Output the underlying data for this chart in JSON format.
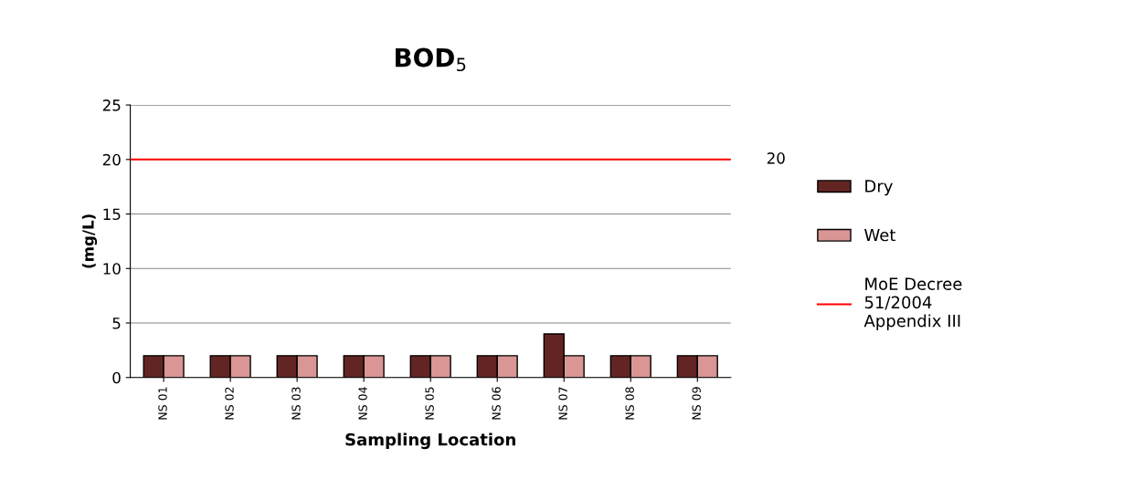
{
  "chart_data": {
    "type": "bar",
    "title": "BOD$_{5}$",
    "xlabel": "Sampling Location",
    "ylabel": "(mg/L)",
    "categories": [
      "NS 01",
      "NS 02",
      "NS 03",
      "NS 04",
      "NS 05",
      "NS 06",
      "NS 07",
      "NS 08",
      "NS 09"
    ],
    "series": [
      {
        "name": "Dry",
        "color": "#632523",
        "values": [
          2,
          2,
          2,
          2,
          2,
          2,
          4,
          2,
          2
        ]
      },
      {
        "name": "Wet",
        "color": "#d99694",
        "values": [
          2,
          2,
          2,
          2,
          2,
          2,
          2,
          2,
          2
        ]
      }
    ],
    "ylim": [
      0,
      25
    ],
    "yticks": [
      0,
      5,
      10,
      15,
      20,
      25
    ],
    "grid": "y",
    "legend": "right",
    "ref_lines": [
      {
        "axis": "y",
        "value": 20,
        "label": "MoE Decree\n51/2004\nAppendix III",
        "color": "#ff0000",
        "line_style": "solid"
      }
    ],
    "annotations": [
      "20"
    ]
  }
}
